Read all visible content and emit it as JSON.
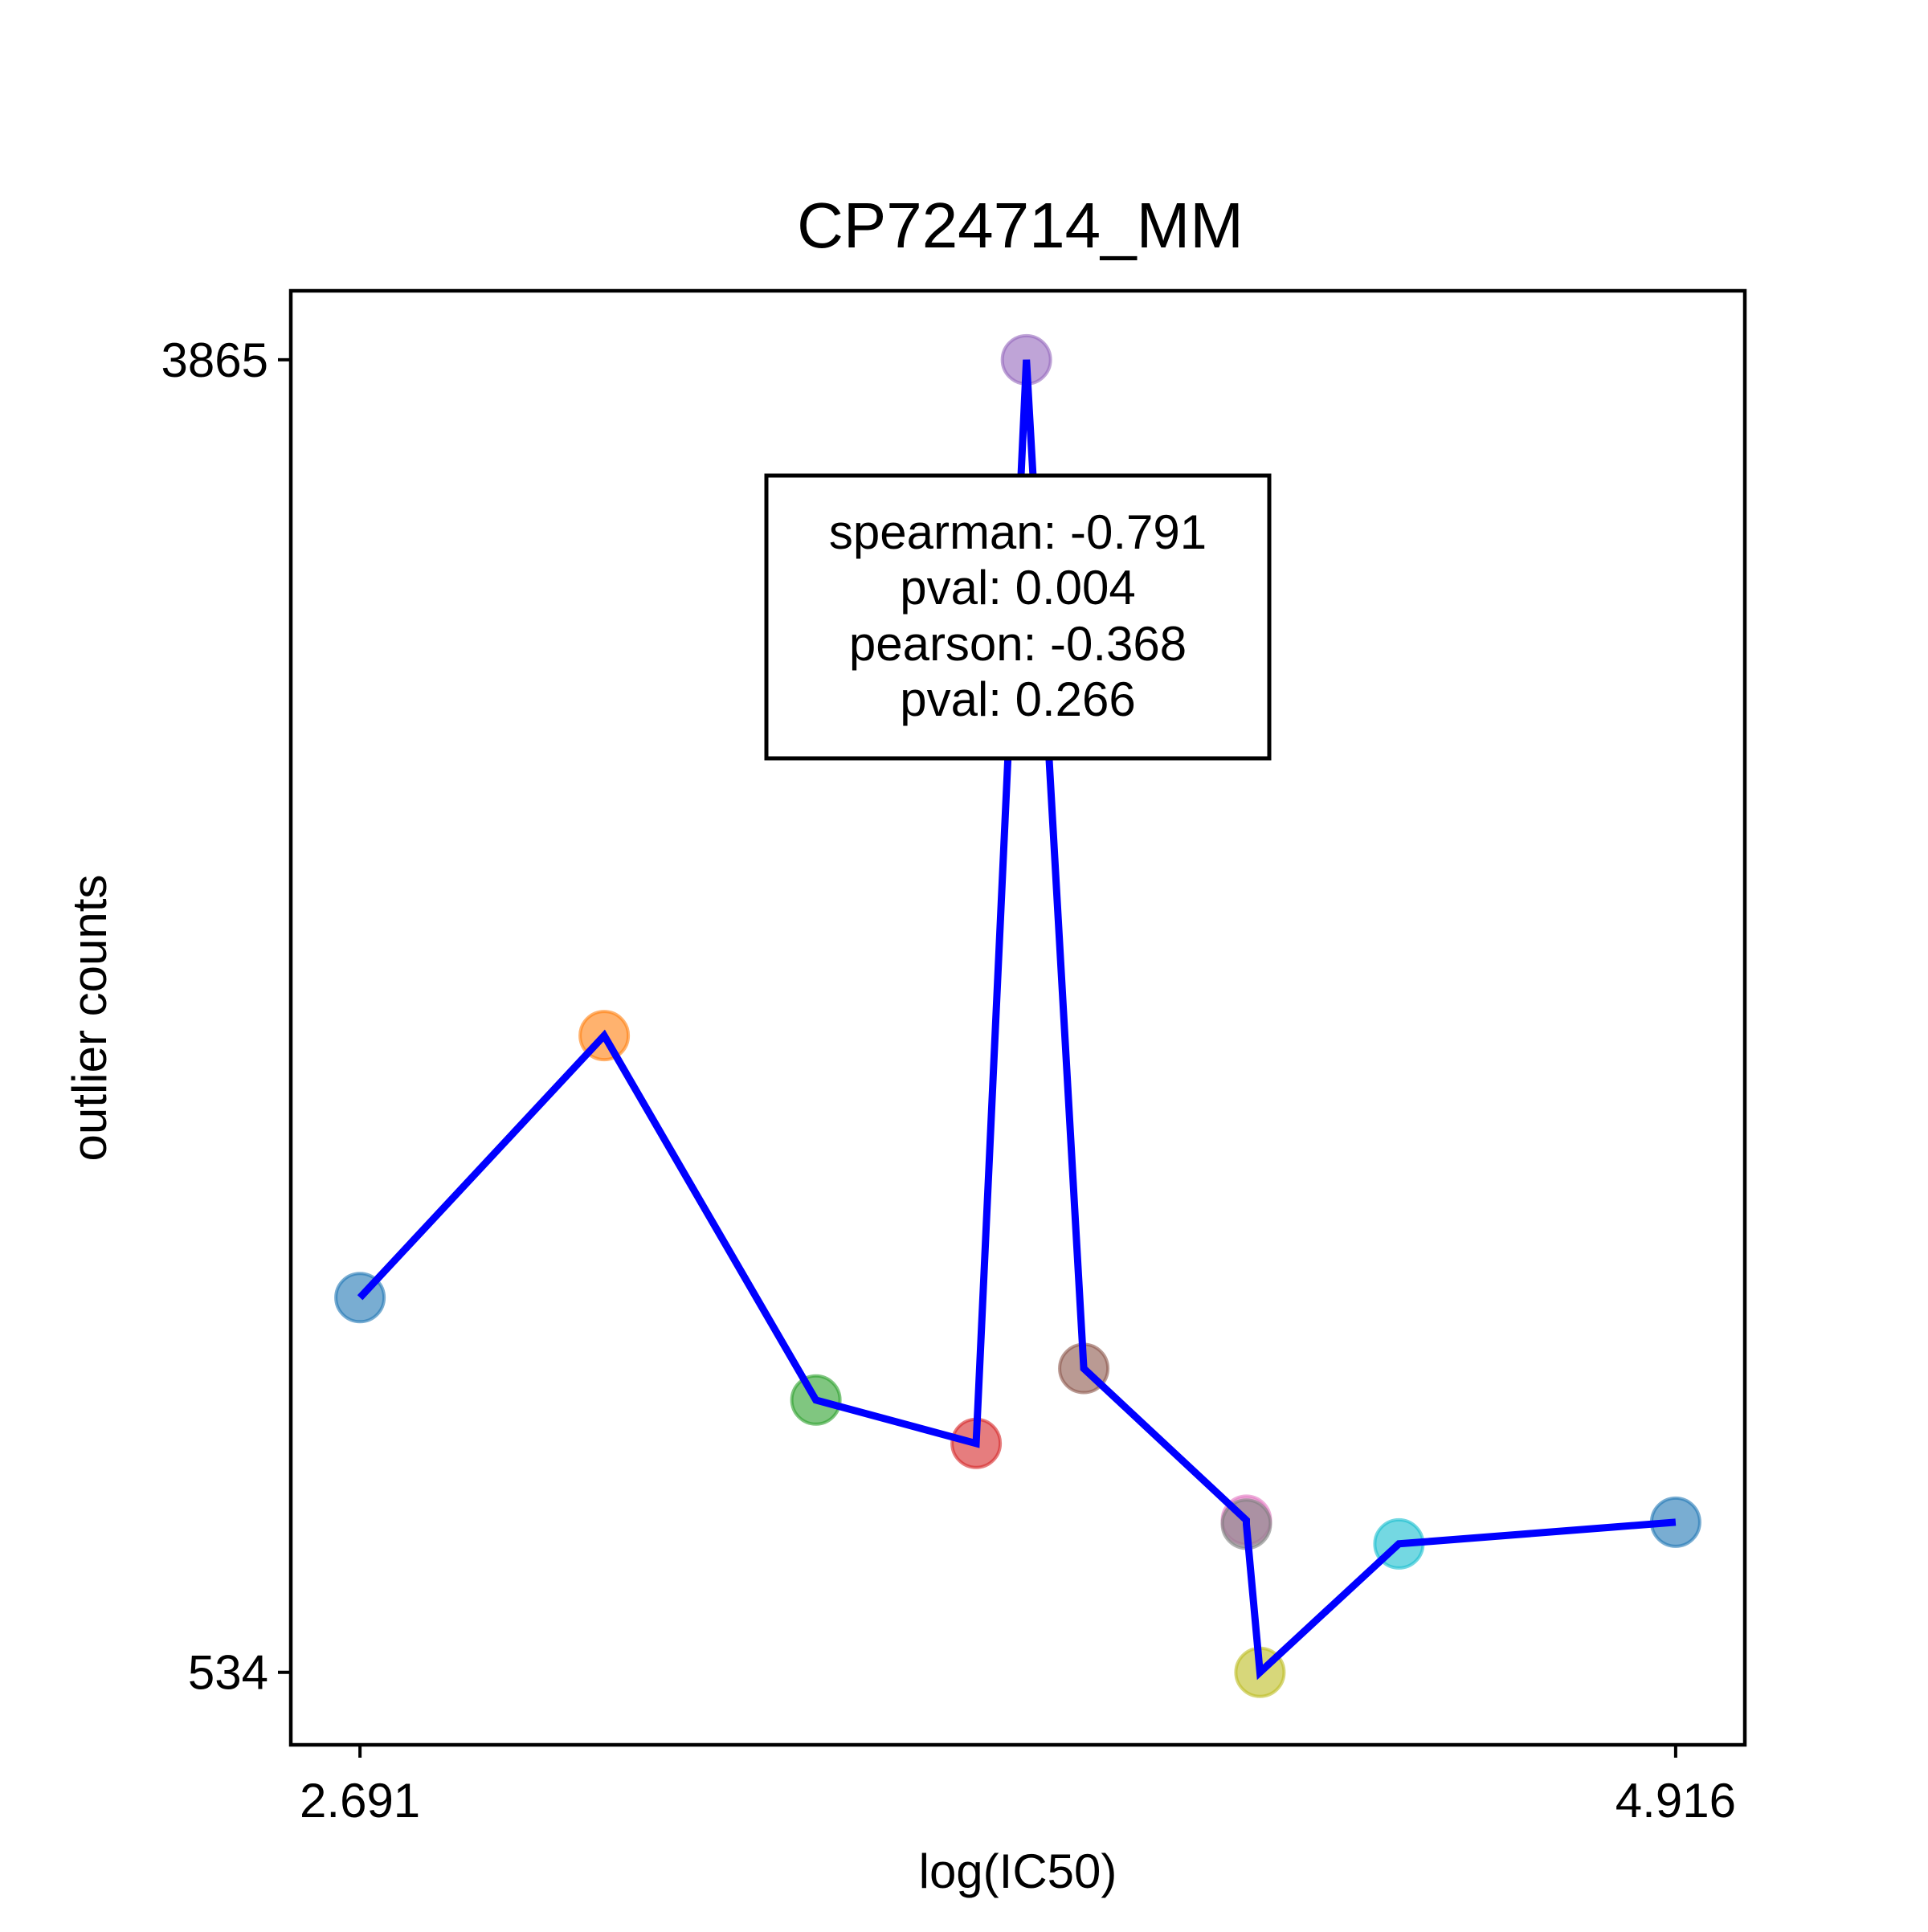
{
  "chart_data": {
    "type": "line",
    "title": "CP724714_MM",
    "xlabel": "log(IC50)",
    "ylabel": "outlier counts",
    "xlim": [
      2.574,
      5.033
    ],
    "ylim": [
      350,
      4040
    ],
    "xticks": [
      "2.691",
      "4.916"
    ],
    "yticks": [
      "534",
      "3865"
    ],
    "xtick_values": [
      2.691,
      4.916
    ],
    "ytick_values": [
      534,
      3865
    ],
    "grid": false,
    "line_color": "#0000ff",
    "points": [
      {
        "x": 2.691,
        "y": 1485,
        "color": "#1f77b4"
      },
      {
        "x": 3.104,
        "y": 2150,
        "color": "#ff7f0e"
      },
      {
        "x": 3.462,
        "y": 1225,
        "color": "#2ca02c"
      },
      {
        "x": 3.733,
        "y": 1115,
        "color": "#d62728"
      },
      {
        "x": 3.818,
        "y": 3865,
        "color": "#9467bd"
      },
      {
        "x": 3.915,
        "y": 1305,
        "color": "#8c564b"
      },
      {
        "x": 4.19,
        "y": 920,
        "color": "#e377c2"
      },
      {
        "x": 4.19,
        "y": 910,
        "color": "#7f7f7f"
      },
      {
        "x": 4.213,
        "y": 534,
        "color": "#bcbd22"
      },
      {
        "x": 4.448,
        "y": 860,
        "color": "#17becf"
      },
      {
        "x": 4.916,
        "y": 915,
        "color": "#1f77b4"
      }
    ],
    "annotation": {
      "lines": [
        "spearman: -0.791",
        "pval: 0.004",
        "pearson: -0.368",
        "pval: 0.266"
      ]
    }
  }
}
